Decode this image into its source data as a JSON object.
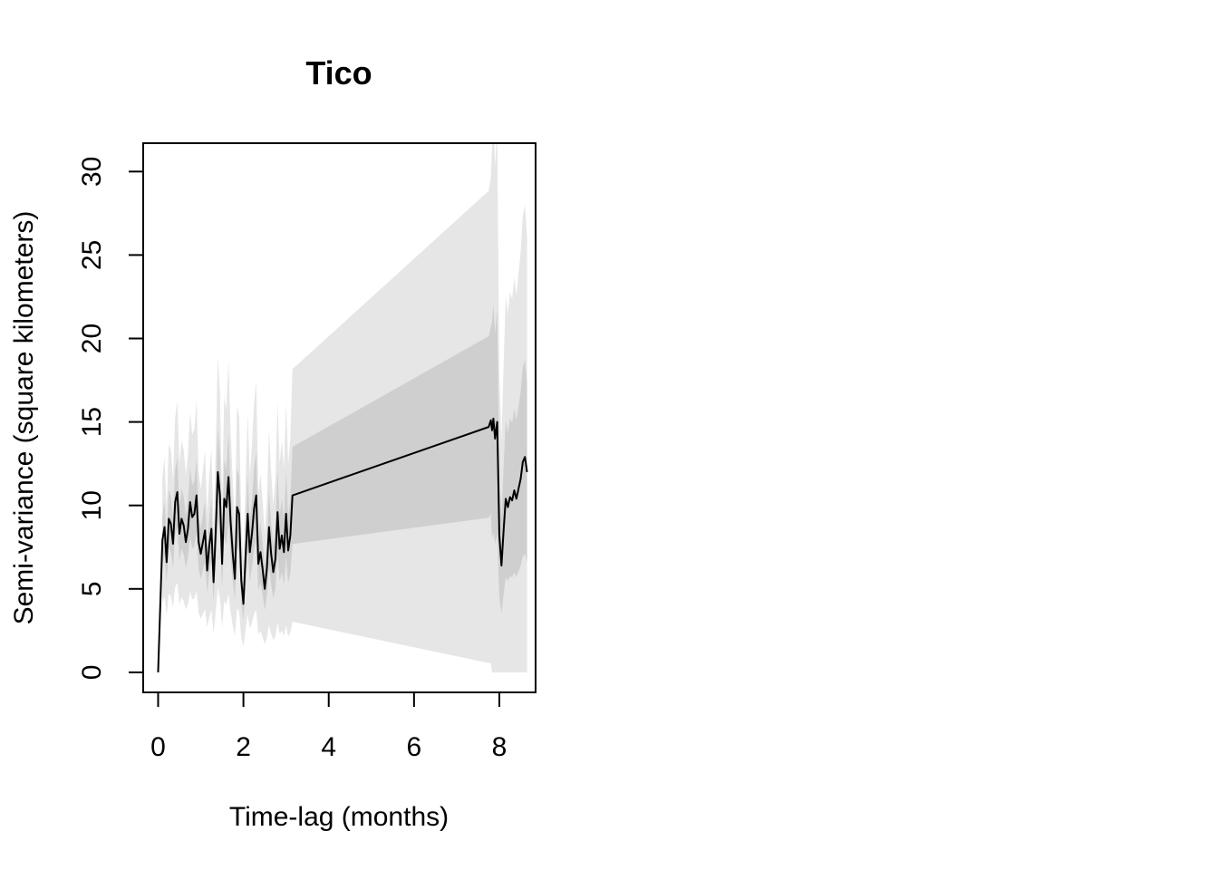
{
  "chart_data": {
    "type": "line",
    "title": "Tico",
    "xlabel": "Time-lag (months)",
    "ylabel": "Semi-variance (square kilometers)",
    "xlim": [
      -0.35,
      8.85
    ],
    "ylim": [
      -1.2,
      31.7
    ],
    "xticks": [
      0,
      2,
      4,
      6,
      8
    ],
    "yticks": [
      0,
      5,
      10,
      15,
      20,
      25,
      30
    ],
    "grid": false,
    "legend": "none",
    "colors": {
      "line": "#000000",
      "band_inner": "#cfcfcf",
      "band_outer": "#e6e6e6"
    },
    "series": [
      {
        "x": [
          0,
          0.1,
          0.15,
          0.2,
          0.25,
          0.3,
          0.35,
          0.4,
          0.45,
          0.5,
          0.55,
          0.6,
          0.65,
          0.7,
          0.75,
          0.8,
          0.85,
          0.9,
          0.95,
          1.0,
          1.05,
          1.1,
          1.15,
          1.2,
          1.25,
          1.3,
          1.35,
          1.4,
          1.45,
          1.5,
          1.55,
          1.6,
          1.65,
          1.7,
          1.75,
          1.8,
          1.85,
          1.9,
          1.95,
          2.0,
          2.05,
          2.1,
          2.15,
          2.2,
          2.25,
          2.3,
          2.35,
          2.4,
          2.45,
          2.5,
          2.55,
          2.6,
          2.65,
          2.7,
          2.75,
          2.8,
          2.85,
          2.9,
          2.95,
          3.0,
          3.05,
          3.1,
          3.15,
          7.75,
          7.8,
          7.83,
          7.86,
          7.9,
          7.95,
          8.0,
          8.05,
          8.1,
          8.15,
          8.2,
          8.25,
          8.3,
          8.35,
          8.4,
          8.45,
          8.5,
          8.55,
          8.6,
          8.65
        ],
        "y": [
          0,
          7.9,
          8.7,
          6.6,
          9.2,
          8.9,
          7.7,
          10.2,
          10.8,
          8.3,
          9.2,
          8.8,
          7.8,
          8.6,
          10.2,
          9.3,
          9.5,
          10.6,
          7.8,
          7.1,
          7.8,
          8.5,
          6.1,
          7.6,
          8.6,
          5.4,
          8.4,
          12.0,
          10.6,
          6.5,
          10.4,
          9.9,
          11.7,
          9.0,
          7.1,
          5.6,
          9.9,
          9.5,
          5.5,
          4.1,
          6.9,
          9.5,
          7.2,
          8.3,
          9.8,
          10.6,
          6.5,
          7.2,
          6.2,
          5.0,
          6.2,
          8.7,
          7.1,
          6.0,
          6.8,
          9.6,
          7.4,
          8.2,
          7.2,
          9.5,
          7.3,
          8.2,
          10.6,
          14.7,
          15.1,
          14.5,
          15.2,
          14.0,
          15.0,
          8.2,
          6.4,
          8.5,
          10.4,
          9.9,
          10.5,
          10.3,
          10.9,
          10.4,
          11.0,
          11.6,
          12.6,
          12.9,
          12.0
        ]
      }
    ]
  }
}
